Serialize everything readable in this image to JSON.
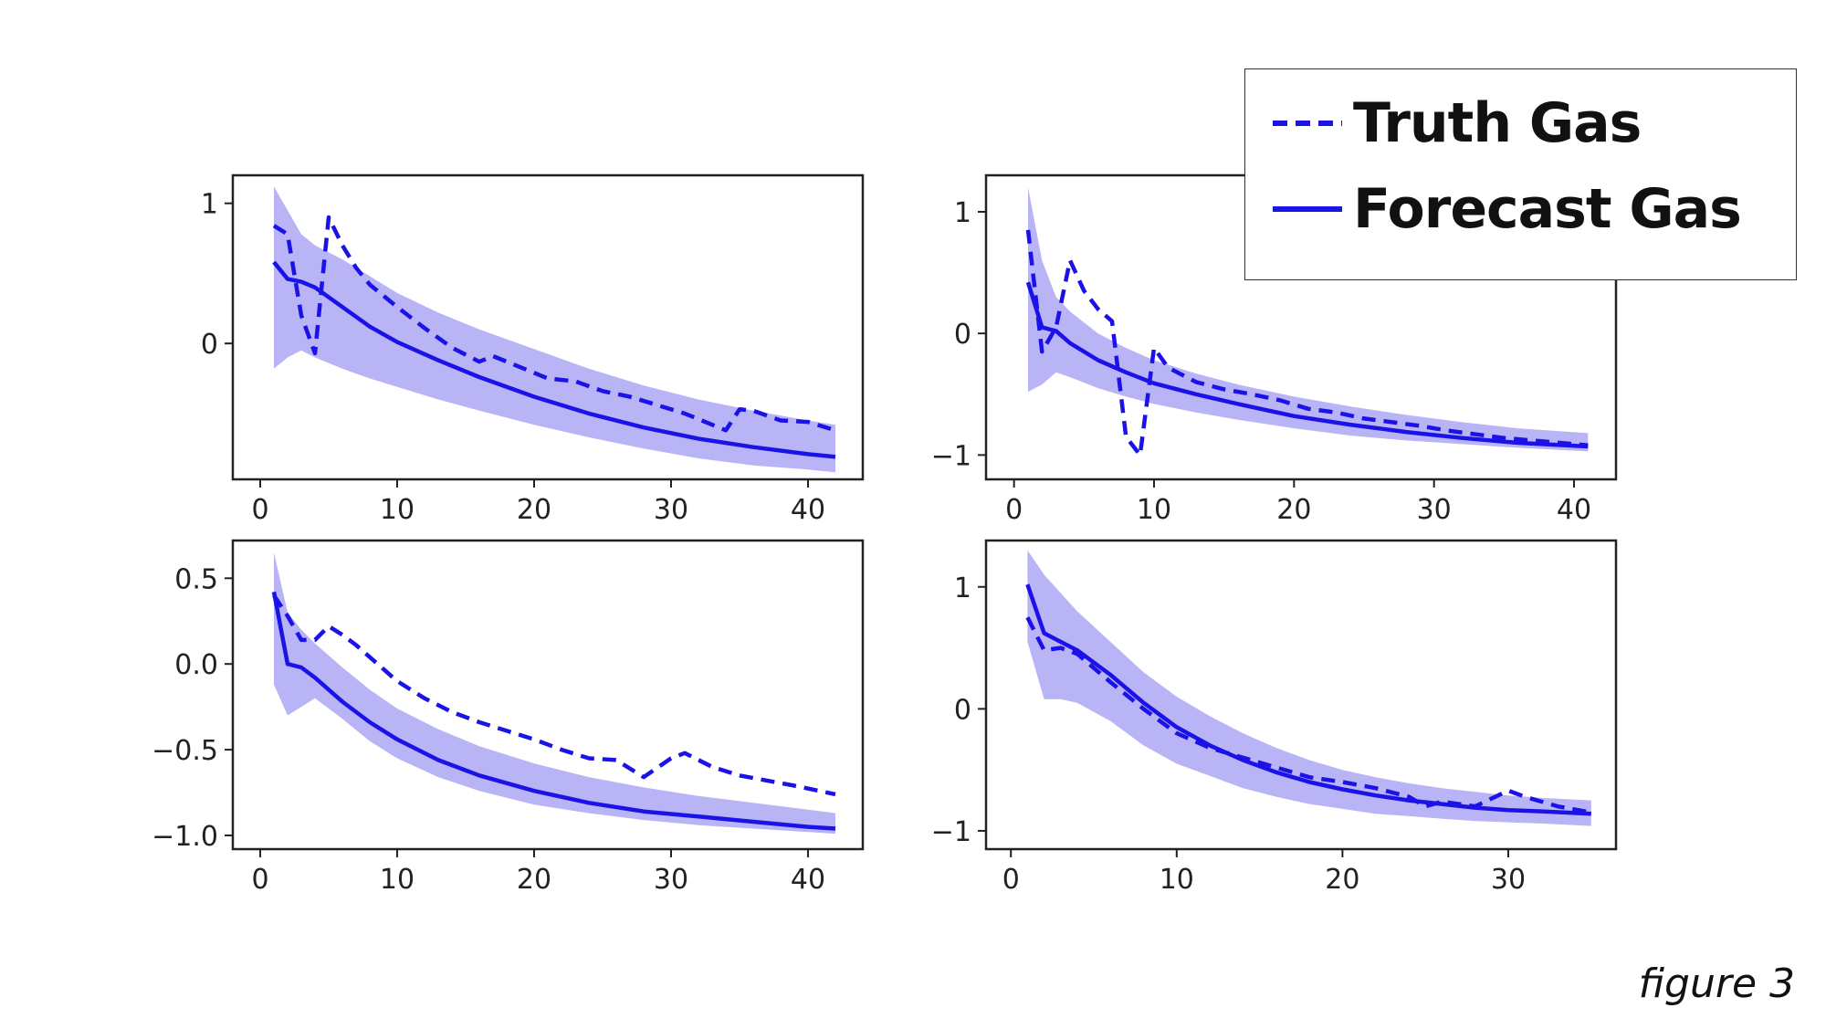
{
  "figure": {
    "caption": "figure 3"
  },
  "legend": {
    "items": [
      {
        "label": "Truth Gas",
        "style": "dashed"
      },
      {
        "label": "Forecast Gas",
        "style": "solid"
      }
    ]
  },
  "colors": {
    "line": "#1a12e6",
    "band": "#8c86f0",
    "axes": "#222222"
  },
  "chart_data": [
    {
      "type": "line",
      "panel": "top-left",
      "xlim": [
        -2,
        44
      ],
      "ylim": [
        -0.97,
        1.2
      ],
      "xticks": [
        0,
        10,
        20,
        30,
        40
      ],
      "yticks": [
        0,
        1
      ],
      "xtick_labels": [
        "0",
        "10",
        "20",
        "30",
        "40"
      ],
      "ytick_labels": [
        "0",
        "1"
      ],
      "series": [
        {
          "name": "Truth Gas",
          "style": "dashed",
          "x": [
            1,
            2,
            3,
            4,
            5,
            6,
            7,
            8,
            10,
            12,
            14,
            16,
            17,
            19,
            21,
            23,
            25,
            27,
            29,
            31,
            34,
            35,
            36,
            38,
            40,
            42
          ],
          "y": [
            0.84,
            0.78,
            0.2,
            -0.07,
            0.9,
            0.7,
            0.54,
            0.42,
            0.26,
            0.11,
            -0.03,
            -0.13,
            -0.09,
            -0.17,
            -0.25,
            -0.27,
            -0.34,
            -0.38,
            -0.44,
            -0.5,
            -0.62,
            -0.47,
            -0.48,
            -0.55,
            -0.56,
            -0.62
          ]
        },
        {
          "name": "Forecast Gas",
          "x": [
            1,
            2,
            3,
            4,
            6,
            8,
            10,
            13,
            16,
            20,
            24,
            28,
            32,
            36,
            40,
            42
          ],
          "y": [
            0.58,
            0.46,
            0.44,
            0.4,
            0.26,
            0.12,
            0.01,
            -0.12,
            -0.24,
            -0.38,
            -0.5,
            -0.6,
            -0.68,
            -0.74,
            -0.79,
            -0.81
          ]
        },
        {
          "name": "band",
          "x": [
            1,
            2,
            3,
            4,
            6,
            8,
            10,
            13,
            16,
            20,
            24,
            28,
            32,
            36,
            40,
            42
          ],
          "y_lower": [
            -0.18,
            -0.1,
            -0.05,
            -0.1,
            -0.18,
            -0.25,
            -0.31,
            -0.4,
            -0.48,
            -0.58,
            -0.67,
            -0.75,
            -0.82,
            -0.87,
            -0.9,
            -0.92
          ],
          "y_upper": [
            1.12,
            0.95,
            0.78,
            0.7,
            0.6,
            0.48,
            0.36,
            0.22,
            0.1,
            -0.04,
            -0.18,
            -0.3,
            -0.4,
            -0.48,
            -0.55,
            -0.58
          ]
        }
      ]
    },
    {
      "type": "line",
      "panel": "top-right",
      "xlim": [
        -2,
        43
      ],
      "ylim": [
        -1.2,
        1.3
      ],
      "xticks": [
        0,
        10,
        20,
        30,
        40
      ],
      "yticks": [
        -1,
        0,
        1
      ],
      "xtick_labels": [
        "0",
        "10",
        "20",
        "30",
        "40"
      ],
      "ytick_labels": [
        "−1",
        "0",
        "1"
      ],
      "series": [
        {
          "name": "Truth Gas",
          "style": "dashed",
          "x": [
            1,
            2,
            3,
            4,
            5,
            6,
            7,
            8,
            9,
            10,
            11,
            13,
            15,
            17,
            19,
            21,
            23,
            25,
            27,
            29,
            31,
            33,
            35,
            37,
            39,
            41
          ],
          "y": [
            0.85,
            -0.15,
            0.05,
            0.6,
            0.35,
            0.2,
            0.1,
            -0.85,
            -1.0,
            -0.12,
            -0.28,
            -0.4,
            -0.46,
            -0.5,
            -0.55,
            -0.62,
            -0.65,
            -0.7,
            -0.73,
            -0.76,
            -0.8,
            -0.83,
            -0.86,
            -0.88,
            -0.9,
            -0.92
          ]
        },
        {
          "name": "Forecast Gas",
          "x": [
            1,
            2,
            3,
            4,
            6,
            8,
            10,
            13,
            16,
            20,
            24,
            28,
            32,
            36,
            41
          ],
          "y": [
            0.42,
            0.05,
            0.02,
            -0.08,
            -0.22,
            -0.32,
            -0.41,
            -0.5,
            -0.58,
            -0.68,
            -0.75,
            -0.81,
            -0.86,
            -0.9,
            -0.93
          ]
        },
        {
          "name": "band",
          "x": [
            1,
            2,
            3,
            4,
            6,
            8,
            10,
            13,
            16,
            20,
            24,
            28,
            32,
            36,
            41
          ],
          "y_lower": [
            -0.48,
            -0.42,
            -0.32,
            -0.36,
            -0.45,
            -0.52,
            -0.58,
            -0.65,
            -0.71,
            -0.78,
            -0.84,
            -0.88,
            -0.91,
            -0.94,
            -0.97
          ],
          "y_upper": [
            1.2,
            0.6,
            0.3,
            0.18,
            0.0,
            -0.12,
            -0.22,
            -0.33,
            -0.42,
            -0.52,
            -0.6,
            -0.67,
            -0.73,
            -0.78,
            -0.82
          ]
        }
      ]
    },
    {
      "type": "line",
      "panel": "bottom-left",
      "xlim": [
        -2,
        44
      ],
      "ylim": [
        -1.08,
        0.72
      ],
      "xticks": [
        0,
        10,
        20,
        30,
        40
      ],
      "yticks": [
        -1.0,
        -0.5,
        0.0,
        0.5
      ],
      "xtick_labels": [
        "0",
        "10",
        "20",
        "30",
        "40"
      ],
      "ytick_labels": [
        "−1.0",
        "−0.5",
        "0.0",
        "0.5"
      ],
      "series": [
        {
          "name": "Truth Gas",
          "style": "dashed",
          "x": [
            1,
            2,
            3,
            4,
            5,
            6,
            7,
            8,
            10,
            12,
            14,
            16,
            18,
            20,
            22,
            24,
            26,
            28,
            30,
            31,
            33,
            35,
            37,
            39,
            42
          ],
          "y": [
            0.4,
            0.28,
            0.14,
            0.14,
            0.22,
            0.17,
            0.11,
            0.04,
            -0.1,
            -0.2,
            -0.28,
            -0.34,
            -0.39,
            -0.44,
            -0.5,
            -0.55,
            -0.56,
            -0.66,
            -0.55,
            -0.52,
            -0.6,
            -0.65,
            -0.68,
            -0.71,
            -0.76
          ]
        },
        {
          "name": "Forecast Gas",
          "x": [
            1,
            2,
            3,
            4,
            6,
            8,
            10,
            13,
            16,
            20,
            24,
            28,
            32,
            36,
            40,
            42
          ],
          "y": [
            0.42,
            0.0,
            -0.02,
            -0.08,
            -0.22,
            -0.34,
            -0.44,
            -0.56,
            -0.65,
            -0.74,
            -0.81,
            -0.86,
            -0.89,
            -0.92,
            -0.95,
            -0.96
          ]
        },
        {
          "name": "band",
          "x": [
            1,
            2,
            3,
            4,
            6,
            8,
            10,
            13,
            16,
            20,
            24,
            28,
            32,
            36,
            40,
            42
          ],
          "y_lower": [
            -0.12,
            -0.3,
            -0.25,
            -0.2,
            -0.32,
            -0.45,
            -0.55,
            -0.66,
            -0.74,
            -0.82,
            -0.87,
            -0.91,
            -0.94,
            -0.96,
            -0.98,
            -0.99
          ],
          "y_upper": [
            0.65,
            0.3,
            0.2,
            0.12,
            -0.02,
            -0.15,
            -0.26,
            -0.38,
            -0.48,
            -0.58,
            -0.66,
            -0.72,
            -0.77,
            -0.81,
            -0.85,
            -0.87
          ]
        }
      ]
    },
    {
      "type": "line",
      "panel": "bottom-right",
      "xlim": [
        -1.5,
        36.5
      ],
      "ylim": [
        -1.15,
        1.38
      ],
      "xticks": [
        0,
        10,
        20,
        30
      ],
      "yticks": [
        -1,
        0,
        1
      ],
      "xtick_labels": [
        "0",
        "10",
        "20",
        "30"
      ],
      "ytick_labels": [
        "−1",
        "0",
        "1"
      ],
      "series": [
        {
          "name": "Truth Gas",
          "style": "dashed",
          "x": [
            1,
            2,
            3,
            4,
            6,
            8,
            10,
            12,
            14,
            16,
            18,
            20,
            22,
            24,
            25,
            26,
            28,
            30,
            31,
            33,
            35
          ],
          "y": [
            0.75,
            0.48,
            0.5,
            0.45,
            0.22,
            0.0,
            -0.2,
            -0.32,
            -0.4,
            -0.48,
            -0.56,
            -0.6,
            -0.65,
            -0.72,
            -0.8,
            -0.76,
            -0.8,
            -0.67,
            -0.72,
            -0.8,
            -0.85
          ]
        },
        {
          "name": "Forecast Gas",
          "x": [
            1,
            2,
            3,
            4,
            6,
            8,
            10,
            12,
            14,
            16,
            18,
            20,
            22,
            24,
            26,
            28,
            30,
            32,
            35
          ],
          "y": [
            1.02,
            0.62,
            0.55,
            0.48,
            0.28,
            0.05,
            -0.15,
            -0.3,
            -0.42,
            -0.52,
            -0.6,
            -0.66,
            -0.71,
            -0.75,
            -0.78,
            -0.81,
            -0.83,
            -0.84,
            -0.86
          ]
        },
        {
          "name": "band",
          "x": [
            1,
            2,
            3,
            4,
            6,
            8,
            10,
            12,
            14,
            16,
            18,
            20,
            22,
            24,
            26,
            28,
            30,
            32,
            35
          ],
          "y_lower": [
            0.55,
            0.08,
            0.08,
            0.05,
            -0.1,
            -0.3,
            -0.45,
            -0.55,
            -0.65,
            -0.72,
            -0.78,
            -0.82,
            -0.86,
            -0.88,
            -0.9,
            -0.92,
            -0.93,
            -0.94,
            -0.96
          ],
          "y_upper": [
            1.3,
            1.1,
            0.95,
            0.8,
            0.55,
            0.3,
            0.1,
            -0.06,
            -0.2,
            -0.32,
            -0.42,
            -0.5,
            -0.56,
            -0.61,
            -0.65,
            -0.68,
            -0.71,
            -0.73,
            -0.75
          ]
        }
      ]
    }
  ]
}
